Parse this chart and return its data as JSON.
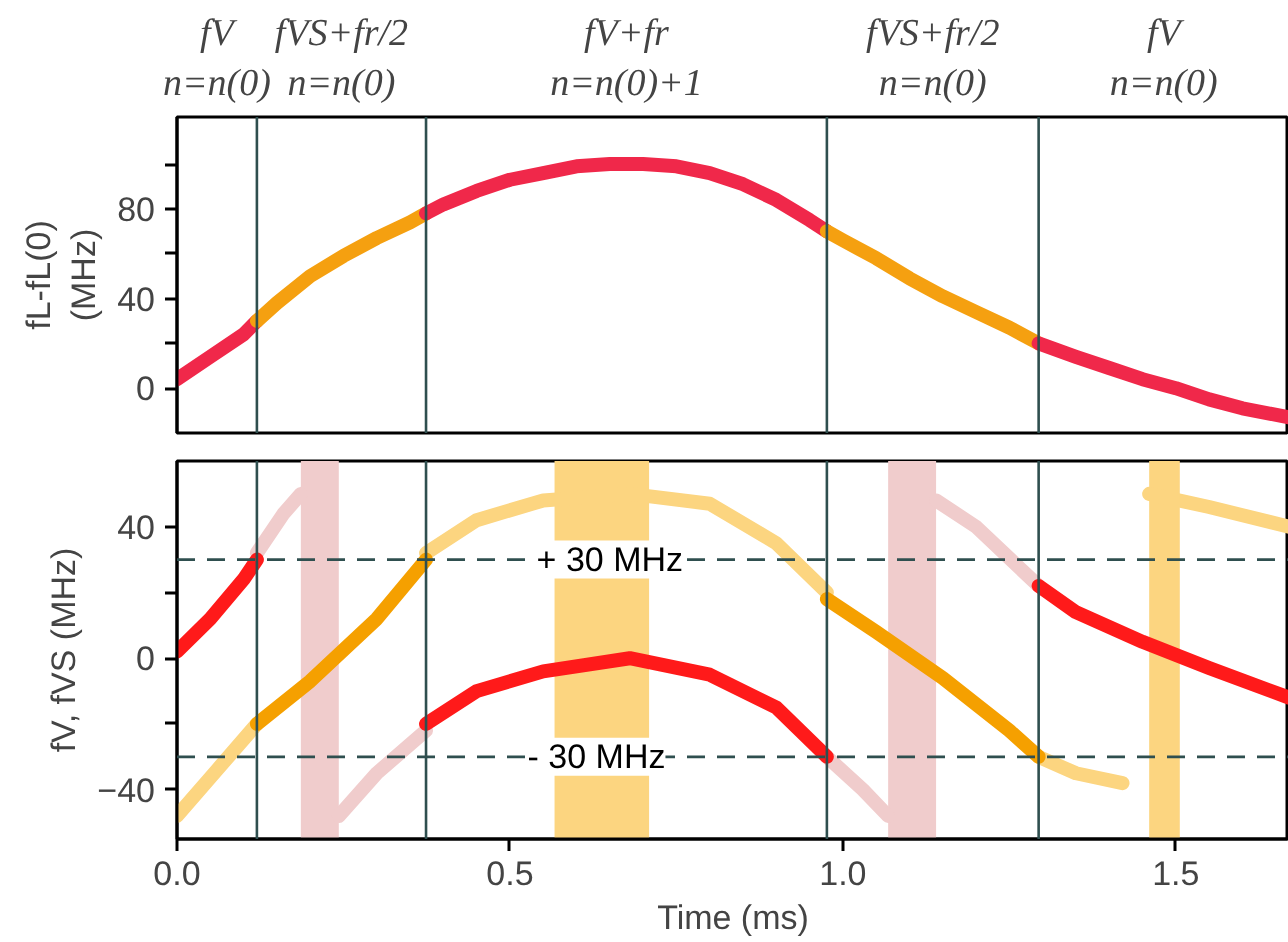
{
  "chart_data": [
    {
      "type": "line",
      "ylabel": "fL-fL(0)\n(MHz)",
      "xlim": [
        0,
        1.67
      ],
      "ylim": [
        -20,
        121
      ],
      "yticks": [
        0,
        {
          "value": 20,
          "label": null
        },
        40,
        {
          "value": 60,
          "label": null
        },
        80,
        {
          "value": 100,
          "label": null
        }
      ],
      "annotations": [
        "fV\nn=n(0)",
        "fVS+fr/2\nn=n(0)",
        "fV+fr\nn=n(0)+1",
        "fVS+fr/2\nn=n(0)",
        "fV\nn=n(0)"
      ],
      "tick_labels": "y",
      "series": [
        {
          "color": "#f0284a",
          "x": [
            0,
            0.05,
            0.1,
            0.12
          ],
          "values": [
            4,
            14,
            24,
            30
          ]
        },
        {
          "color": "#f5a010",
          "x": [
            0.12,
            0.15,
            0.2,
            0.25,
            0.3,
            0.35,
            0.374
          ],
          "values": [
            30,
            38,
            50,
            59,
            67,
            74,
            78
          ]
        },
        {
          "color": "#f0284a",
          "x": [
            0.374,
            0.4,
            0.45,
            0.5,
            0.55,
            0.6,
            0.65,
            0.7,
            0.75,
            0.8,
            0.85,
            0.9,
            0.95,
            0.976
          ],
          "values": [
            78,
            82,
            88,
            93,
            96,
            99,
            100,
            100,
            99,
            96,
            91,
            84,
            75,
            70
          ]
        },
        {
          "color": "#f5a010",
          "x": [
            0.976,
            1.0,
            1.05,
            1.1,
            1.15,
            1.2,
            1.25,
            1.294
          ],
          "values": [
            70,
            66,
            58,
            49,
            41,
            34,
            27,
            20
          ]
        },
        {
          "color": "#f0284a",
          "x": [
            1.294,
            1.35,
            1.4,
            1.45,
            1.5,
            1.55,
            1.6,
            1.67
          ],
          "values": [
            20,
            14,
            9,
            4,
            0,
            -5,
            -9,
            -13
          ]
        }
      ],
      "ref_lines": [
        {
          "axis": "x",
          "value": 0.12,
          "color": "#2f4f4f"
        },
        {
          "axis": "x",
          "value": 0.374,
          "color": "#2f4f4f"
        },
        {
          "axis": "x",
          "value": 0.976,
          "color": "#2f4f4f"
        },
        {
          "axis": "x",
          "value": 1.294,
          "color": "#2f4f4f"
        }
      ]
    },
    {
      "type": "line",
      "xlabel": "Time (ms)",
      "ylabel": "fV, fVS (MHz)",
      "xlim": [
        0,
        1.67
      ],
      "ylim": [
        -55,
        60
      ],
      "xticks": [
        {
          "value": 0,
          "label": "0.0"
        },
        {
          "value": 0.5,
          "label": "0.5"
        },
        {
          "value": 1,
          "label": "1.0"
        },
        {
          "value": 1.5,
          "label": "1.5"
        }
      ],
      "yticks": [
        -40,
        {
          "value": -20,
          "label": null
        },
        0,
        {
          "value": 20,
          "label": null
        },
        40
      ],
      "series": [
        {
          "color": "#fcd580",
          "x": [
            0,
            0.06,
            0.12,
            0.2,
            0.374,
            0.45,
            0.55,
            0.68,
            0.8,
            0.9,
            0.976,
            1.1,
            1.294,
            1.35,
            1.42,
            1.44,
            1.46,
            1.55,
            1.67
          ],
          "values": [
            -48,
            -34,
            -20,
            null,
            32,
            42,
            48,
            50,
            47,
            35,
            20,
            null,
            -30,
            -35,
            -38,
            null,
            50,
            46,
            40
          ]
        },
        {
          "color": "#f0cccc",
          "x": [
            0.12,
            0.16,
            0.186,
            0.2,
            0.243,
            0.3,
            0.374,
            0.6,
            0.976,
            1.03,
            1.068,
            1.1,
            1.14,
            1.2,
            1.294
          ],
          "values": [
            32,
            44,
            50,
            null,
            -48,
            -35,
            -22,
            null,
            -30,
            -40,
            -48,
            null,
            48,
            40,
            22
          ]
        },
        {
          "color": "#ff1a1a",
          "x": [
            0,
            0.05,
            0.1,
            0.12
          ],
          "values": [
            2,
            12,
            24,
            30
          ]
        },
        {
          "color": "#f5a000",
          "x": [
            0.12,
            0.2,
            0.3,
            0.374
          ],
          "values": [
            -20,
            -7,
            12,
            30
          ]
        },
        {
          "color": "#ff1a1a",
          "x": [
            0.374,
            0.45,
            0.55,
            0.68,
            0.8,
            0.9,
            0.976
          ],
          "values": [
            -20,
            -10,
            -4,
            0,
            -5,
            -15,
            -30
          ]
        },
        {
          "color": "#f5a000",
          "x": [
            0.976,
            1.05,
            1.15,
            1.25,
            1.294
          ],
          "values": [
            18,
            8,
            -6,
            -22,
            -30
          ]
        },
        {
          "color": "#ff1a1a",
          "x": [
            1.294,
            1.35,
            1.45,
            1.55,
            1.67
          ],
          "values": [
            22,
            14,
            5,
            -3,
            -12
          ]
        }
      ],
      "bands": [
        {
          "axis": "x",
          "from": 0.186,
          "to": 0.243,
          "color": "#f0cccc"
        },
        {
          "axis": "x",
          "from": 0.567,
          "to": 0.709,
          "color": "#fcd580"
        },
        {
          "axis": "x",
          "from": 1.068,
          "to": 1.14,
          "color": "#f0cccc"
        },
        {
          "axis": "x",
          "from": 1.46,
          "to": 1.506,
          "color": "#fcd580"
        }
      ],
      "ref_lines": [
        {
          "axis": "y",
          "value": 30,
          "color": "#2f4f4f",
          "line_style": "dashed"
        },
        {
          "axis": "y",
          "value": -30,
          "color": "#2f4f4f",
          "line_style": "dashed"
        },
        {
          "axis": "x",
          "value": 0.12,
          "color": "#2f4f4f"
        },
        {
          "axis": "x",
          "value": 0.374,
          "color": "#2f4f4f"
        },
        {
          "axis": "x",
          "value": 0.976,
          "color": "#2f4f4f"
        },
        {
          "axis": "x",
          "value": 1.294,
          "color": "#2f4f4f"
        }
      ],
      "annotations": [
        {
          "text": "+ 30 MHz",
          "x": 0.65,
          "y": 30
        },
        {
          "text": "- 30 MHz",
          "x": 0.63,
          "y": -30
        }
      ]
    }
  ]
}
